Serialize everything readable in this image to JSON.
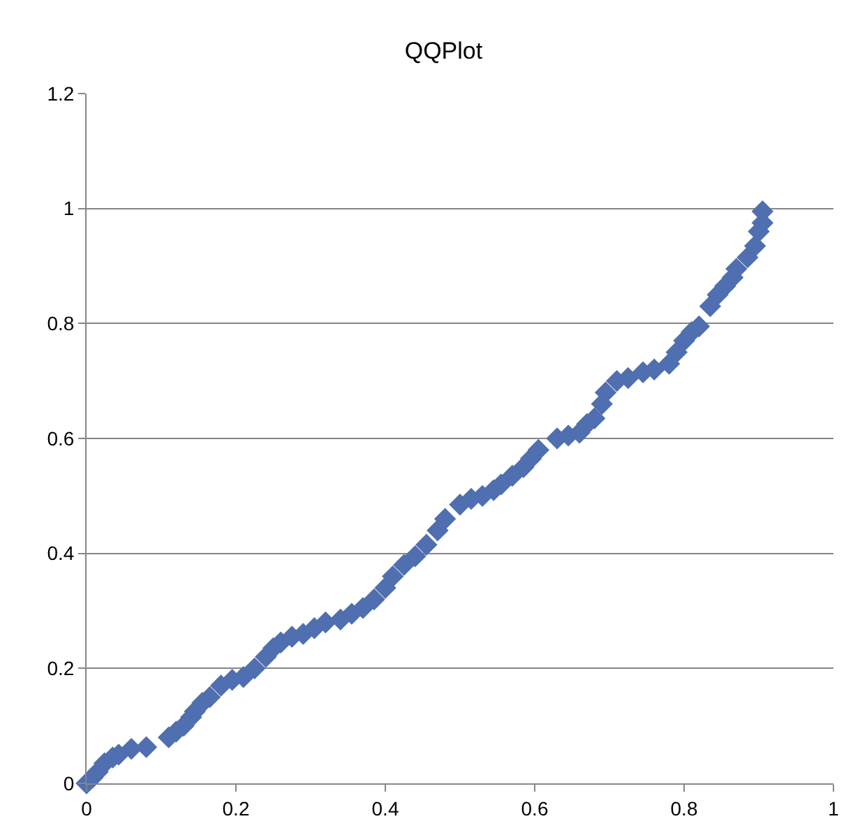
{
  "chart_data": {
    "type": "scatter",
    "title": "QQPlot",
    "marker": "diamond",
    "grid": "y",
    "xlim": [
      0,
      1
    ],
    "xticks": [
      0,
      0.2,
      0.4,
      0.6,
      0.8,
      1
    ],
    "ylim": [
      0,
      1.2
    ],
    "yticks": [
      0,
      0.2,
      0.4,
      0.6,
      0.8,
      1,
      1.2
    ],
    "series": [
      {
        "color": "#4f6fb0",
        "x": [
          0,
          0.008,
          0.015,
          0.024,
          0.035,
          0.043,
          0.06,
          0.08,
          0.11,
          0.12,
          0.13,
          0.14,
          0.145,
          0.155,
          0.165,
          0.18,
          0.195,
          0.21,
          0.225,
          0.24,
          0.25,
          0.26,
          0.275,
          0.29,
          0.305,
          0.32,
          0.34,
          0.355,
          0.37,
          0.385,
          0.4,
          0.41,
          0.425,
          0.44,
          0.455,
          0.47,
          0.48,
          0.5,
          0.515,
          0.53,
          0.545,
          0.555,
          0.57,
          0.585,
          0.595,
          0.605,
          0.63,
          0.645,
          0.66,
          0.67,
          0.68,
          0.69,
          0.695,
          0.71,
          0.725,
          0.745,
          0.76,
          0.78,
          0.79,
          0.8,
          0.81,
          0.82,
          0.835,
          0.845,
          0.855,
          0.865,
          0.87,
          0.885,
          0.895,
          0.9,
          0.905,
          0.905
        ],
        "values": [
          0,
          0.01,
          0.02,
          0.035,
          0.045,
          0.05,
          0.06,
          0.063,
          0.08,
          0.09,
          0.1,
          0.115,
          0.125,
          0.14,
          0.15,
          0.17,
          0.18,
          0.185,
          0.2,
          0.22,
          0.235,
          0.245,
          0.255,
          0.26,
          0.27,
          0.28,
          0.285,
          0.295,
          0.305,
          0.32,
          0.34,
          0.36,
          0.38,
          0.395,
          0.415,
          0.44,
          0.46,
          0.485,
          0.495,
          0.5,
          0.51,
          0.52,
          0.535,
          0.55,
          0.565,
          0.58,
          0.6,
          0.605,
          0.61,
          0.625,
          0.635,
          0.66,
          0.68,
          0.7,
          0.705,
          0.715,
          0.72,
          0.73,
          0.75,
          0.77,
          0.785,
          0.795,
          0.83,
          0.85,
          0.865,
          0.88,
          0.895,
          0.915,
          0.935,
          0.96,
          0.975,
          0.995
        ]
      }
    ]
  }
}
